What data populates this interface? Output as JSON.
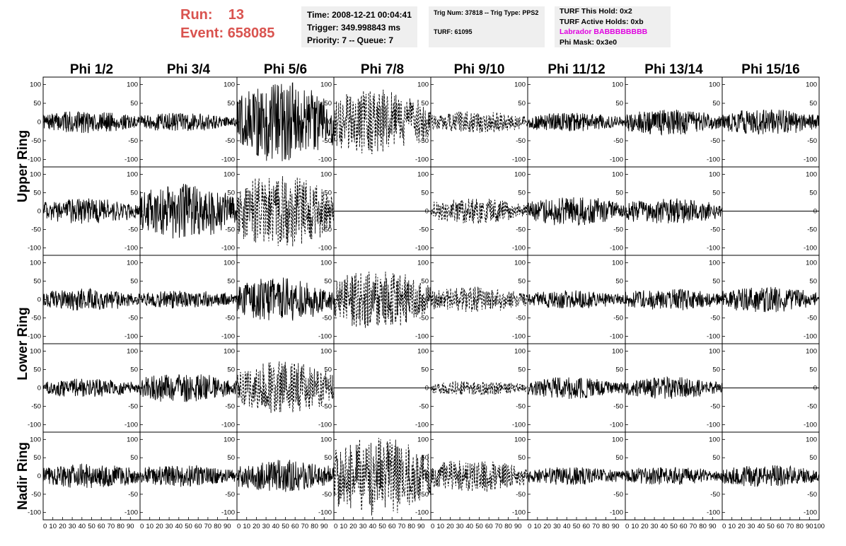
{
  "header": {
    "run_label": "Run:",
    "run_value": "13",
    "event_label": "Event:",
    "event_value": "658085"
  },
  "time_box": {
    "time": "Time: 2008-12-21 00:04:41",
    "trigger": "Trigger: 349.998843 ms",
    "priority": "Priority: 7 -- Queue: 7"
  },
  "trig_box": {
    "trig": "Trig Num: 37818 -- Trig Type: PPS2",
    "turf": "TURF: 61095"
  },
  "turf_box": {
    "hold": "TURF This Hold: 0x2",
    "active": "TURF Active Holds: 0xb",
    "labrador": "Labrador BABBBBBBBB",
    "phi_mask": "Phi Mask: 0x3e0",
    "labrador_color": "#e000e0"
  },
  "chart_data": {
    "type": "line",
    "columns": [
      "Phi 1/2",
      "Phi 3/4",
      "Phi 5/6",
      "Phi 7/8",
      "Phi 9/10",
      "Phi 11/12",
      "Phi 13/14",
      "Phi 15/16"
    ],
    "ring_labels": [
      "Upper Ring",
      "Lower Ring",
      "Nadir Ring"
    ],
    "ylim": [
      -120,
      120
    ],
    "xlim": [
      0,
      100
    ],
    "yticks": [
      "100",
      "50",
      "0",
      "-50",
      "-100"
    ],
    "xticks": [
      "0",
      "10",
      "20",
      "30",
      "40",
      "50",
      "60",
      "70",
      "80",
      "90",
      "100"
    ],
    "panel_rows": [
      [
        {
          "amp": 30,
          "dash": false
        },
        {
          "amp": 25,
          "dash": false
        },
        {
          "amp": 110,
          "dash": false
        },
        {
          "amp": 90,
          "dash": true
        },
        {
          "amp": 30,
          "dash": true
        },
        {
          "amp": 25,
          "dash": false
        },
        {
          "amp": 35,
          "dash": false
        },
        {
          "amp": 35,
          "dash": false
        }
      ],
      [
        {
          "amp": 35,
          "dash": false
        },
        {
          "amp": 75,
          "dash": false
        },
        {
          "amp": 100,
          "dash": true
        },
        {
          "amp": 0,
          "dash": false
        },
        {
          "amp": 35,
          "dash": true
        },
        {
          "amp": 40,
          "dash": false
        },
        {
          "amp": 35,
          "dash": false
        },
        {
          "amp": 0,
          "dash": false
        }
      ],
      [
        {
          "amp": 30,
          "dash": false
        },
        {
          "amp": 25,
          "dash": false
        },
        {
          "amp": 60,
          "dash": false
        },
        {
          "amp": 80,
          "dash": true
        },
        {
          "amp": 35,
          "dash": true
        },
        {
          "amp": 25,
          "dash": false
        },
        {
          "amp": 30,
          "dash": false
        },
        {
          "amp": 35,
          "dash": false
        }
      ],
      [
        {
          "amp": 25,
          "dash": false
        },
        {
          "amp": 40,
          "dash": false
        },
        {
          "amp": 75,
          "dash": true
        },
        {
          "amp": 0,
          "dash": false
        },
        {
          "amp": 20,
          "dash": true
        },
        {
          "amp": 30,
          "dash": false
        },
        {
          "amp": 30,
          "dash": false
        },
        {
          "amp": 0,
          "dash": false
        }
      ],
      [
        {
          "amp": 35,
          "dash": false
        },
        {
          "amp": 30,
          "dash": false
        },
        {
          "amp": 45,
          "dash": false
        },
        {
          "amp": 110,
          "dash": true
        },
        {
          "amp": 45,
          "dash": true
        },
        {
          "amp": 25,
          "dash": false
        },
        {
          "amp": 25,
          "dash": false
        },
        {
          "amp": 30,
          "dash": false
        }
      ]
    ]
  }
}
